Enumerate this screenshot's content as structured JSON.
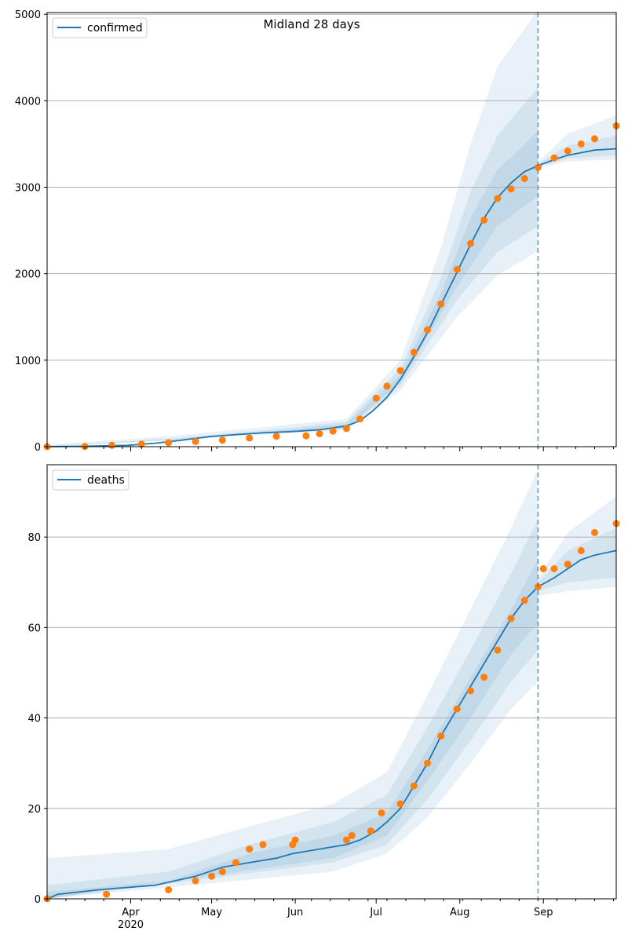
{
  "suptitle": "Midland 28 days",
  "chart_data": [
    {
      "type": "line",
      "series_name": "confirmed",
      "ylim": [
        0,
        5020
      ],
      "yticks": [
        0,
        1000,
        2000,
        3000,
        4000,
        5000
      ],
      "ytick_labels": [
        "0",
        "1000",
        "2000",
        "3000",
        "4000",
        "5000"
      ],
      "grid": true,
      "legend": "top-left",
      "forecast_start": "2020-08-30",
      "model": [
        [
          "2020-03-01",
          0
        ],
        [
          "2020-03-15",
          5
        ],
        [
          "2020-03-31",
          15
        ],
        [
          "2020-04-10",
          40
        ],
        [
          "2020-04-20",
          75
        ],
        [
          "2020-04-30",
          115
        ],
        [
          "2020-05-10",
          140
        ],
        [
          "2020-05-20",
          160
        ],
        [
          "2020-05-31",
          175
        ],
        [
          "2020-06-10",
          195
        ],
        [
          "2020-06-20",
          240
        ],
        [
          "2020-06-25",
          300
        ],
        [
          "2020-06-30",
          420
        ],
        [
          "2020-07-05",
          570
        ],
        [
          "2020-07-10",
          780
        ],
        [
          "2020-07-15",
          1040
        ],
        [
          "2020-07-20",
          1320
        ],
        [
          "2020-07-25",
          1640
        ],
        [
          "2020-07-31",
          2020
        ],
        [
          "2020-08-05",
          2340
        ],
        [
          "2020-08-10",
          2640
        ],
        [
          "2020-08-15",
          2880
        ],
        [
          "2020-08-20",
          3050
        ],
        [
          "2020-08-25",
          3180
        ],
        [
          "2020-08-30",
          3250
        ],
        [
          "2020-09-05",
          3320
        ],
        [
          "2020-09-10",
          3370
        ],
        [
          "2020-09-15",
          3400
        ],
        [
          "2020-09-20",
          3430
        ],
        [
          "2020-09-28",
          3445
        ]
      ],
      "bands": [
        {
          "lower": [
            [
              "2020-03-01",
              0
            ],
            [
              "2020-06-20",
              190
            ],
            [
              "2020-07-10",
              650
            ],
            [
              "2020-07-31",
              1500
            ],
            [
              "2020-08-15",
              1980
            ],
            [
              "2020-08-30",
              2260
            ]
          ],
          "upper": [
            [
              "2020-03-01",
              20
            ],
            [
              "2020-04-15",
              120
            ],
            [
              "2020-05-31",
              260
            ],
            [
              "2020-06-20",
              320
            ],
            [
              "2020-07-10",
              1000
            ],
            [
              "2020-07-25",
              2300
            ],
            [
              "2020-08-05",
              3500
            ],
            [
              "2020-08-15",
              4400
            ],
            [
              "2020-08-30",
              5050
            ]
          ]
        },
        {
          "lower": [
            [
              "2020-03-01",
              0
            ],
            [
              "2020-06-20",
              205
            ],
            [
              "2020-07-10",
              700
            ],
            [
              "2020-07-31",
              1700
            ],
            [
              "2020-08-15",
              2250
            ],
            [
              "2020-08-30",
              2550
            ]
          ],
          "upper": [
            [
              "2020-03-01",
              10
            ],
            [
              "2020-04-15",
              90
            ],
            [
              "2020-05-31",
              220
            ],
            [
              "2020-06-20",
              290
            ],
            [
              "2020-07-10",
              900
            ],
            [
              "2020-07-25",
              1950
            ],
            [
              "2020-08-05",
              2950
            ],
            [
              "2020-08-15",
              3600
            ],
            [
              "2020-08-30",
              4150
            ]
          ]
        },
        {
          "lower": [
            [
              "2020-03-01",
              0
            ],
            [
              "2020-06-20",
              220
            ],
            [
              "2020-07-10",
              740
            ],
            [
              "2020-07-31",
              1850
            ],
            [
              "2020-08-15",
              2550
            ],
            [
              "2020-08-30",
              2900
            ]
          ],
          "upper": [
            [
              "2020-03-01",
              5
            ],
            [
              "2020-04-15",
              70
            ],
            [
              "2020-05-31",
              200
            ],
            [
              "2020-06-20",
              265
            ],
            [
              "2020-07-10",
              830
            ],
            [
              "2020-07-25",
              1780
            ],
            [
              "2020-08-05",
              2650
            ],
            [
              "2020-08-15",
              3200
            ],
            [
              "2020-08-30",
              3650
            ]
          ]
        },
        {
          "lower": [
            [
              "2020-08-30",
              3220
            ],
            [
              "2020-09-10",
              3300
            ],
            [
              "2020-09-28",
              3320
            ]
          ],
          "upper": [
            [
              "2020-08-30",
              3290
            ],
            [
              "2020-09-10",
              3620
            ],
            [
              "2020-09-28",
              3830
            ]
          ]
        },
        {
          "lower": [
            [
              "2020-08-30",
              3240
            ],
            [
              "2020-09-10",
              3330
            ],
            [
              "2020-09-28",
              3370
            ]
          ],
          "upper": [
            [
              "2020-08-30",
              3270
            ],
            [
              "2020-09-10",
              3480
            ],
            [
              "2020-09-28",
              3600
            ]
          ]
        }
      ],
      "observed": [
        [
          "2020-03-01",
          0
        ],
        [
          "2020-03-15",
          2
        ],
        [
          "2020-03-25",
          15
        ],
        [
          "2020-04-05",
          30
        ],
        [
          "2020-04-15",
          45
        ],
        [
          "2020-04-25",
          60
        ],
        [
          "2020-05-05",
          75
        ],
        [
          "2020-05-15",
          100
        ],
        [
          "2020-05-25",
          120
        ],
        [
          "2020-06-05",
          125
        ],
        [
          "2020-06-10",
          150
        ],
        [
          "2020-06-15",
          180
        ],
        [
          "2020-06-20",
          210
        ],
        [
          "2020-06-25",
          320
        ],
        [
          "2020-07-01",
          560
        ],
        [
          "2020-07-05",
          700
        ],
        [
          "2020-07-10",
          880
        ],
        [
          "2020-07-15",
          1090
        ],
        [
          "2020-07-20",
          1350
        ],
        [
          "2020-07-25",
          1650
        ],
        [
          "2020-07-31",
          2050
        ],
        [
          "2020-08-05",
          2350
        ],
        [
          "2020-08-10",
          2620
        ],
        [
          "2020-08-15",
          2870
        ],
        [
          "2020-08-20",
          2980
        ],
        [
          "2020-08-25",
          3100
        ],
        [
          "2020-08-30",
          3230
        ],
        [
          "2020-09-05",
          3340
        ],
        [
          "2020-09-10",
          3420
        ],
        [
          "2020-09-15",
          3500
        ],
        [
          "2020-09-20",
          3560
        ],
        [
          "2020-09-28",
          3710
        ]
      ]
    },
    {
      "type": "line",
      "series_name": "deaths",
      "ylim": [
        0,
        96
      ],
      "yticks": [
        0,
        20,
        40,
        60,
        80
      ],
      "ytick_labels": [
        "0",
        "20",
        "40",
        "60",
        "80"
      ],
      "grid": true,
      "legend": "top-left",
      "forecast_start": "2020-08-30",
      "model": [
        [
          "2020-03-01",
          0
        ],
        [
          "2020-03-05",
          1
        ],
        [
          "2020-03-20",
          2
        ],
        [
          "2020-04-10",
          3
        ],
        [
          "2020-04-25",
          5
        ],
        [
          "2020-05-05",
          7
        ],
        [
          "2020-05-15",
          8
        ],
        [
          "2020-05-25",
          9
        ],
        [
          "2020-05-31",
          10
        ],
        [
          "2020-06-10",
          11
        ],
        [
          "2020-06-20",
          12
        ],
        [
          "2020-06-25",
          13
        ],
        [
          "2020-07-01",
          15
        ],
        [
          "2020-07-05",
          17
        ],
        [
          "2020-07-10",
          20
        ],
        [
          "2020-07-15",
          25
        ],
        [
          "2020-07-20",
          30
        ],
        [
          "2020-07-25",
          36
        ],
        [
          "2020-07-31",
          42
        ],
        [
          "2020-08-05",
          47
        ],
        [
          "2020-08-10",
          52
        ],
        [
          "2020-08-15",
          57
        ],
        [
          "2020-08-20",
          62
        ],
        [
          "2020-08-25",
          66
        ],
        [
          "2020-08-30",
          69
        ],
        [
          "2020-09-05",
          71
        ],
        [
          "2020-09-10",
          73
        ],
        [
          "2020-09-15",
          75
        ],
        [
          "2020-09-20",
          76
        ],
        [
          "2020-09-28",
          77
        ]
      ],
      "bands": [
        {
          "lower": [
            [
              "2020-03-01",
              0
            ],
            [
              "2020-06-15",
              6
            ],
            [
              "2020-07-05",
              10
            ],
            [
              "2020-07-20",
              18
            ],
            [
              "2020-08-05",
              30
            ],
            [
              "2020-08-20",
              42
            ],
            [
              "2020-08-30",
              48
            ]
          ],
          "upper": [
            [
              "2020-03-01",
              9
            ],
            [
              "2020-04-15",
              11
            ],
            [
              "2020-05-15",
              16
            ],
            [
              "2020-06-15",
              21
            ],
            [
              "2020-07-05",
              28
            ],
            [
              "2020-07-20",
              45
            ],
            [
              "2020-08-05",
              64
            ],
            [
              "2020-08-20",
              82
            ],
            [
              "2020-08-30",
              95
            ]
          ]
        },
        {
          "lower": [
            [
              "2020-03-01",
              0
            ],
            [
              "2020-06-15",
              8
            ],
            [
              "2020-07-05",
              12
            ],
            [
              "2020-07-20",
              22
            ],
            [
              "2020-08-05",
              35
            ],
            [
              "2020-08-20",
              48
            ],
            [
              "2020-08-30",
              55
            ]
          ],
          "upper": [
            [
              "2020-03-01",
              3
            ],
            [
              "2020-04-15",
              6
            ],
            [
              "2020-05-15",
              12
            ],
            [
              "2020-06-15",
              17
            ],
            [
              "2020-07-05",
              23
            ],
            [
              "2020-07-20",
              38
            ],
            [
              "2020-08-05",
              55
            ],
            [
              "2020-08-20",
              72
            ],
            [
              "2020-08-30",
              84
            ]
          ]
        },
        {
          "lower": [
            [
              "2020-03-01",
              0
            ],
            [
              "2020-06-15",
              9
            ],
            [
              "2020-07-05",
              14
            ],
            [
              "2020-07-20",
              26
            ],
            [
              "2020-08-05",
              40
            ],
            [
              "2020-08-20",
              54
            ],
            [
              "2020-08-30",
              61
            ]
          ],
          "upper": [
            [
              "2020-03-01",
              1.5
            ],
            [
              "2020-04-15",
              4
            ],
            [
              "2020-05-15",
              10
            ],
            [
              "2020-06-15",
              14
            ],
            [
              "2020-07-05",
              19
            ],
            [
              "2020-07-20",
              33
            ],
            [
              "2020-08-05",
              49
            ],
            [
              "2020-08-20",
              64
            ],
            [
              "2020-08-30",
              75
            ]
          ]
        },
        {
          "lower": [
            [
              "2020-08-30",
              67
            ],
            [
              "2020-09-10",
              68
            ],
            [
              "2020-09-28",
              69
            ]
          ],
          "upper": [
            [
              "2020-08-30",
              71
            ],
            [
              "2020-09-10",
              81
            ],
            [
              "2020-09-28",
              89
            ]
          ]
        },
        {
          "lower": [
            [
              "2020-08-30",
              68
            ],
            [
              "2020-09-10",
              70
            ],
            [
              "2020-09-28",
              71
            ]
          ],
          "upper": [
            [
              "2020-08-30",
              70
            ],
            [
              "2020-09-10",
              77
            ],
            [
              "2020-09-28",
              82
            ]
          ]
        }
      ],
      "observed": [
        [
          "2020-03-01",
          0
        ],
        [
          "2020-03-23",
          1
        ],
        [
          "2020-04-15",
          2
        ],
        [
          "2020-04-25",
          4
        ],
        [
          "2020-05-01",
          5
        ],
        [
          "2020-05-05",
          6
        ],
        [
          "2020-05-10",
          8
        ],
        [
          "2020-05-15",
          11
        ],
        [
          "2020-05-20",
          12
        ],
        [
          "2020-05-31",
          12
        ],
        [
          "2020-06-01",
          13
        ],
        [
          "2020-06-20",
          13
        ],
        [
          "2020-06-22",
          14
        ],
        [
          "2020-06-29",
          15
        ],
        [
          "2020-07-03",
          19
        ],
        [
          "2020-07-10",
          21
        ],
        [
          "2020-07-15",
          25
        ],
        [
          "2020-07-20",
          30
        ],
        [
          "2020-07-25",
          36
        ],
        [
          "2020-07-31",
          42
        ],
        [
          "2020-08-05",
          46
        ],
        [
          "2020-08-10",
          49
        ],
        [
          "2020-08-15",
          55
        ],
        [
          "2020-08-20",
          62
        ],
        [
          "2020-08-25",
          66
        ],
        [
          "2020-08-30",
          69
        ],
        [
          "2020-09-01",
          73
        ],
        [
          "2020-09-05",
          73
        ],
        [
          "2020-09-10",
          74
        ],
        [
          "2020-09-15",
          77
        ],
        [
          "2020-09-20",
          81
        ],
        [
          "2020-09-28",
          83
        ]
      ]
    }
  ],
  "x_axis": {
    "range": [
      "2020-03-01",
      "2020-09-28"
    ],
    "major_ticks": [
      {
        "date": "2020-04-01",
        "label": "Apr"
      },
      {
        "date": "2020-05-01",
        "label": "May"
      },
      {
        "date": "2020-06-01",
        "label": "Jun"
      },
      {
        "date": "2020-07-01",
        "label": "Jul"
      },
      {
        "date": "2020-08-01",
        "label": "Aug"
      },
      {
        "date": "2020-09-01",
        "label": "Sep"
      }
    ],
    "year_label": "2020"
  },
  "colors": {
    "model_line": "#1f77b4",
    "band_fill": "#1f77b4",
    "observed": "#ff7f0e",
    "grid": "#b0b0b0",
    "axis": "#000000"
  }
}
